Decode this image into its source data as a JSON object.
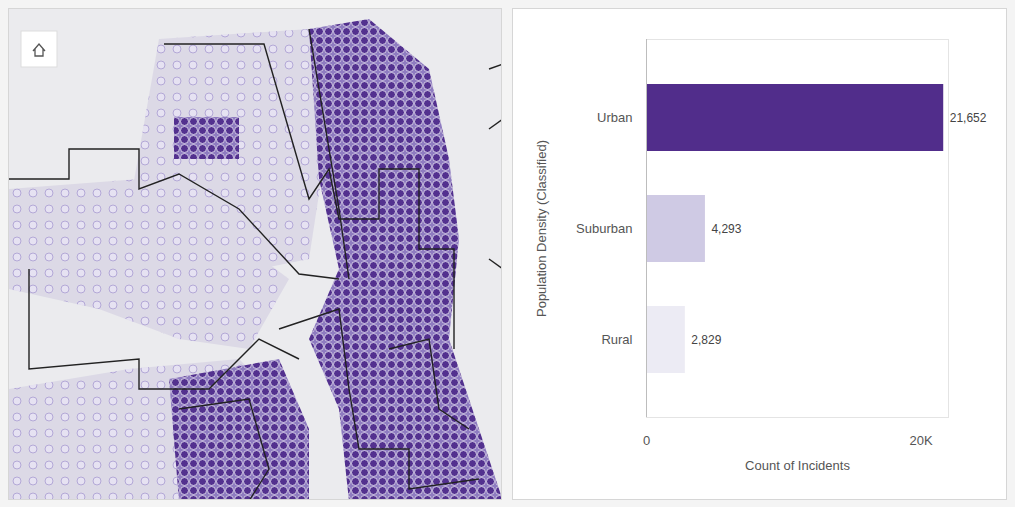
{
  "chart_data": {
    "type": "bar",
    "orientation": "horizontal",
    "categories": [
      "Urban",
      "Suburban",
      "Rural"
    ],
    "values": [
      21652,
      4293,
      2829
    ],
    "value_labels": [
      "21,652",
      "4,293",
      "2,829"
    ],
    "colors": [
      "#512d8b",
      "#cfcae4",
      "#ecebf4"
    ],
    "xlabel": "Count of Incidents",
    "ylabel": "Population Density (Classified)",
    "xlim": [
      0,
      22000
    ],
    "xticks": [
      0,
      {
        "value": 20000,
        "label": "20K"
      }
    ],
    "grid": false,
    "data_labels": true
  }
}
